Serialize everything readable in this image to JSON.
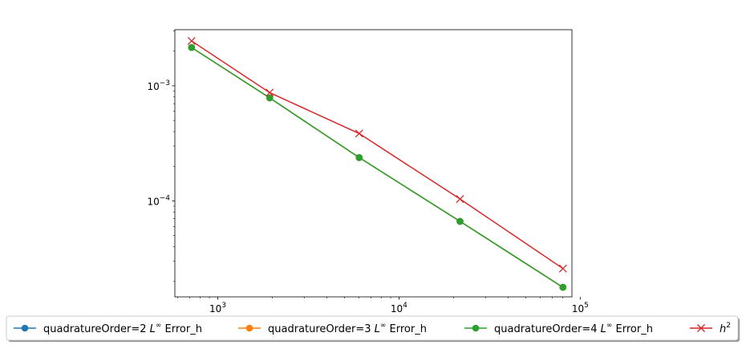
{
  "chart_data": {
    "type": "line",
    "xscale": "log",
    "yscale": "log",
    "xlim": [
      580,
      90000
    ],
    "ylim": [
      1.47e-05,
      0.00307
    ],
    "x": [
      717,
      1935,
      6031,
      21711,
      80277
    ],
    "x_ticks": [
      {
        "value": 1000,
        "base": "10",
        "exp": "3"
      },
      {
        "value": 10000,
        "base": "10",
        "exp": "4"
      },
      {
        "value": 100000,
        "base": "10",
        "exp": "5"
      }
    ],
    "y_ticks": [
      {
        "value": 0.001,
        "base": "10",
        "exp": "−3"
      },
      {
        "value": 0.0001,
        "base": "10",
        "exp": "−4"
      }
    ],
    "series": [
      {
        "name": "quadratureOrder=2",
        "name_sup": "∞",
        "name_prefix": "L",
        "name_suffix": " Error_h",
        "color": "#1f77b4",
        "marker": "circle",
        "values": [
          0.00215,
          0.000785,
          0.000238,
          6.65e-05,
          1.78e-05
        ]
      },
      {
        "name": "quadratureOrder=3",
        "name_sup": "∞",
        "name_prefix": "L",
        "name_suffix": " Error_h",
        "color": "#ff7f0e",
        "marker": "circle",
        "values": [
          0.00215,
          0.000785,
          0.000238,
          6.65e-05,
          1.78e-05
        ]
      },
      {
        "name": "quadratureOrder=4",
        "name_sup": "∞",
        "name_prefix": "L",
        "name_suffix": " Error_h",
        "color": "#2ca02c",
        "marker": "circle",
        "values": [
          0.00215,
          0.000785,
          0.000238,
          6.65e-05,
          1.78e-05
        ]
      },
      {
        "name": "h",
        "name_sup": "2",
        "name_prefix": "",
        "name_suffix": "",
        "color": "#d62728",
        "marker": "x",
        "values": [
          0.00245,
          0.000872,
          0.000385,
          0.000104,
          2.59e-05
        ]
      }
    ],
    "legend_placement": "bottom",
    "grid": false
  }
}
